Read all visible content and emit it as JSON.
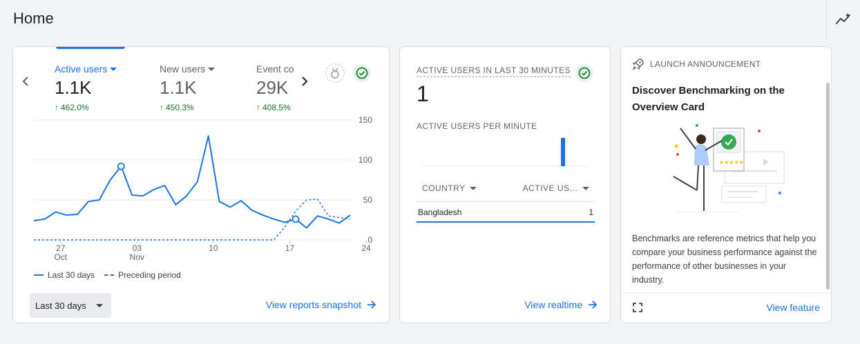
{
  "page": {
    "title": "Home"
  },
  "overview": {
    "metrics": [
      {
        "label": "Active users",
        "value": "1.1K",
        "change": "462.0%"
      },
      {
        "label": "New users",
        "value": "1.1K",
        "change": "450.3%"
      },
      {
        "label": "Event co",
        "value": "29K",
        "change": "408.5%"
      }
    ],
    "legend": {
      "current": "Last 30 days",
      "previous": "Preceding period"
    },
    "date_range": "Last 30 days",
    "link_label": "View reports snapshot"
  },
  "chart_data": {
    "type": "line",
    "x_tick_labels": [
      {
        "day": "27",
        "month": "Oct"
      },
      {
        "day": "03",
        "month": "Nov"
      },
      {
        "day": "10",
        "month": ""
      },
      {
        "day": "17",
        "month": ""
      },
      {
        "day": "24",
        "month": ""
      }
    ],
    "y_ticks": [
      "150",
      "100",
      "50",
      "0"
    ],
    "ylim": [
      0,
      150
    ],
    "series": [
      {
        "name": "Last 30 days",
        "style": "solid",
        "values": [
          24,
          26,
          35,
          31,
          32,
          48,
          50,
          75,
          92,
          56,
          55,
          63,
          68,
          44,
          55,
          73,
          130,
          48,
          41,
          49,
          37,
          31,
          26,
          22,
          26,
          15,
          30,
          26,
          21,
          31
        ]
      },
      {
        "name": "Preceding period",
        "style": "dashed",
        "values": [
          0,
          0,
          0,
          0,
          0,
          0,
          0,
          0,
          0,
          0,
          0,
          0,
          0,
          0,
          0,
          0,
          0,
          0,
          0,
          0,
          0,
          0,
          0,
          16,
          36,
          50,
          51,
          30,
          28,
          26
        ]
      }
    ],
    "highlight_points": [
      {
        "series": 0,
        "index": 8
      },
      {
        "series": 0,
        "index": 24
      }
    ]
  },
  "realtime": {
    "title": "ACTIVE USERS IN LAST 30 MINUTES",
    "value": "1",
    "per_minute_label": "ACTIVE USERS PER MINUTE",
    "per_minute_values": [
      0,
      0,
      0,
      0,
      0,
      0,
      0,
      0,
      0,
      0,
      0,
      0,
      0,
      0,
      0,
      0,
      0,
      0,
      0,
      0,
      0,
      0,
      0,
      0,
      0,
      1,
      0,
      0,
      0,
      0
    ],
    "table": {
      "columns": [
        "COUNTRY",
        "ACTIVE US…"
      ],
      "rows": [
        {
          "country": "Bangladesh",
          "users": "1"
        }
      ]
    },
    "link_label": "View realtime"
  },
  "launch": {
    "header": "LAUNCH ANNOUNCEMENT",
    "title": "Discover Benchmarking on the Overview Card",
    "body": "Benchmarks are reference metrics that help you compare your business performance against the performance of other businesses in your industry.",
    "link_label": "View feature"
  },
  "colors": {
    "accent": "#1a73e8",
    "positive": "#137333",
    "check_bg": "#e6f4ea",
    "check": "#188038"
  }
}
